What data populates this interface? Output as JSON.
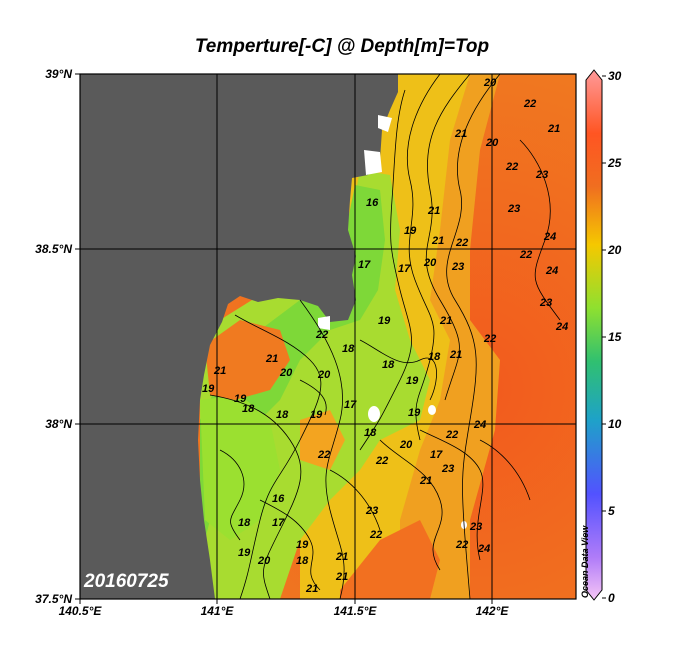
{
  "title": "Temperture[-C] @ Depth[m]=Top",
  "date_stamp": "20160725",
  "watermark": "Ocean Data View",
  "lat_labels": [
    "39°N",
    "38.5°N",
    "38°N",
    "37.5°N"
  ],
  "lon_labels": [
    "140.5°E",
    "141°E",
    "141.5°E",
    "142°E"
  ],
  "colorbar": {
    "min": 0,
    "max": 30,
    "ticks": [
      "30",
      "25",
      "20",
      "15",
      "10",
      "5",
      "0"
    ],
    "colors": [
      "#ff9999",
      "#ff5522",
      "#f5c800",
      "#7ee835",
      "#25b6c0",
      "#5555ff",
      "#e59cf2"
    ]
  },
  "land_color": "#5a5a5a",
  "contour_labels": [
    "20",
    "21",
    "21",
    "22",
    "20",
    "22",
    "23",
    "23",
    "16",
    "24",
    "21",
    "21",
    "22",
    "17",
    "22",
    "19",
    "20",
    "23",
    "24",
    "23",
    "24",
    "17",
    "21",
    "22",
    "18",
    "19",
    "18",
    "22",
    "21",
    "21",
    "19",
    "20",
    "18",
    "20",
    "19",
    "18",
    "19",
    "21",
    "19",
    "18",
    "17",
    "19",
    "20",
    "22",
    "24",
    "23",
    "21",
    "22",
    "17",
    "18",
    "16",
    "22",
    "22",
    "18",
    "23",
    "17",
    "19",
    "21",
    "23",
    "22",
    "24",
    "18",
    "19",
    "20",
    "21",
    "21"
  ]
}
